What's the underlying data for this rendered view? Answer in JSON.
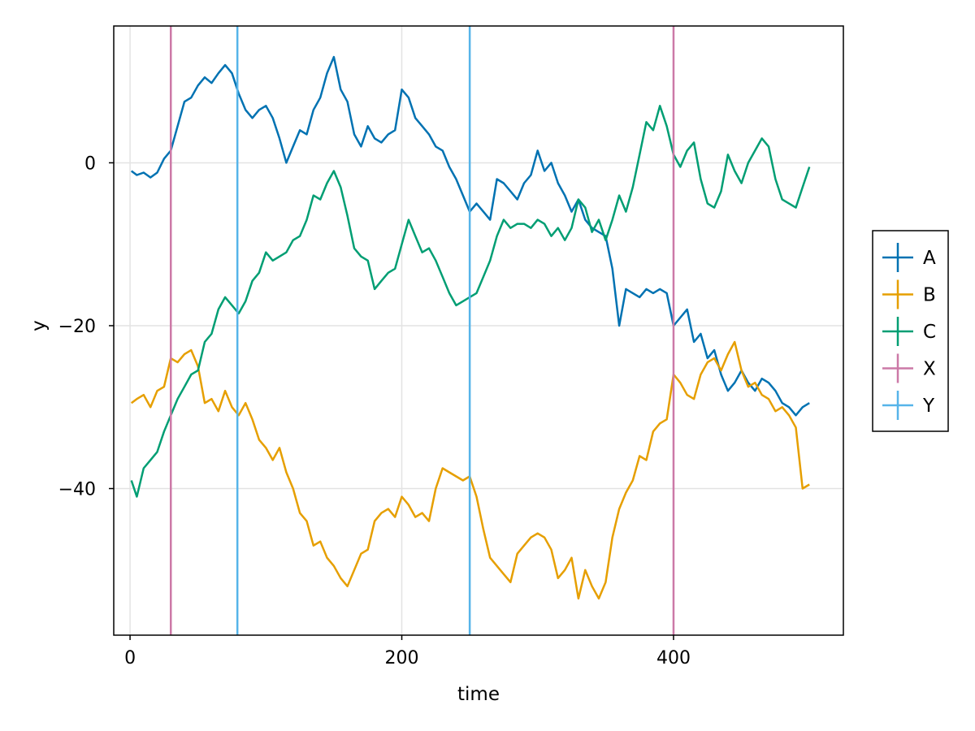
{
  "chart_data": {
    "type": "line",
    "title": "",
    "xlabel": "time",
    "ylabel": "y",
    "xlim": [
      -12,
      525
    ],
    "ylim": [
      -58,
      16.8
    ],
    "xticks": [
      0,
      200,
      400
    ],
    "xtick_labels": [
      "0",
      "200",
      "400"
    ],
    "yticks": [
      -40,
      -20,
      0
    ],
    "ytick_labels": [
      "−40",
      "−20",
      "0"
    ],
    "grid": true,
    "legend_position": "right",
    "series": [
      {
        "name": "A",
        "color": "#0072b2",
        "x": [
          1,
          5,
          10,
          15,
          20,
          25,
          30,
          35,
          40,
          45,
          50,
          55,
          60,
          65,
          70,
          75,
          80,
          85,
          90,
          95,
          100,
          105,
          110,
          115,
          120,
          125,
          130,
          135,
          140,
          145,
          150,
          155,
          160,
          165,
          170,
          175,
          180,
          185,
          190,
          195,
          200,
          205,
          210,
          215,
          220,
          225,
          230,
          235,
          240,
          245,
          250,
          255,
          260,
          265,
          270,
          275,
          280,
          285,
          290,
          295,
          300,
          305,
          310,
          315,
          320,
          325,
          330,
          335,
          340,
          345,
          350,
          355,
          360,
          365,
          370,
          375,
          380,
          385,
          390,
          395,
          400,
          405,
          410,
          415,
          420,
          425,
          430,
          435,
          440,
          445,
          450,
          455,
          460,
          465,
          470,
          475,
          480,
          485,
          490,
          495,
          500
        ],
        "y": [
          -1,
          -1.5,
          -1.2,
          -1.8,
          -1.2,
          0.5,
          1.5,
          4.5,
          7.5,
          8,
          9.5,
          10.5,
          9.8,
          11,
          12,
          11,
          8.5,
          6.5,
          5.5,
          6.5,
          7,
          5.5,
          3,
          0,
          2,
          4,
          3.5,
          6.5,
          8,
          11,
          13,
          9,
          7.5,
          3.5,
          2,
          4.5,
          3,
          2.5,
          3.5,
          4,
          9,
          8,
          5.5,
          4.5,
          3.5,
          2,
          1.5,
          -0.5,
          -2,
          -4,
          -6,
          -5,
          -6,
          -7,
          -2,
          -2.5,
          -3.5,
          -4.5,
          -2.5,
          -1.5,
          1.5,
          -1,
          0,
          -2.5,
          -4,
          -6,
          -4.5,
          -7,
          -8,
          -8.5,
          -9,
          -13,
          -20,
          -15.5,
          -16,
          -16.5,
          -15.5,
          -16,
          -15.5,
          -16,
          -20,
          -19,
          -18,
          -22,
          -21,
          -24,
          -23,
          -26,
          -28,
          -27,
          -25.5,
          -27,
          -28,
          -26.5,
          -27,
          -28,
          -29.5,
          -30,
          -31,
          -30,
          -29.5
        ]
      },
      {
        "name": "B",
        "color": "#e69f00",
        "x": [
          1,
          5,
          10,
          15,
          20,
          25,
          30,
          35,
          40,
          45,
          50,
          55,
          60,
          65,
          70,
          75,
          80,
          85,
          90,
          95,
          100,
          105,
          110,
          115,
          120,
          125,
          130,
          135,
          140,
          145,
          150,
          155,
          160,
          165,
          170,
          175,
          180,
          185,
          190,
          195,
          200,
          205,
          210,
          215,
          220,
          225,
          230,
          235,
          240,
          245,
          250,
          255,
          260,
          265,
          270,
          275,
          280,
          285,
          290,
          295,
          300,
          305,
          310,
          315,
          320,
          325,
          330,
          335,
          340,
          345,
          350,
          355,
          360,
          365,
          370,
          375,
          380,
          385,
          390,
          395,
          400,
          405,
          410,
          415,
          420,
          425,
          430,
          435,
          440,
          445,
          450,
          455,
          460,
          465,
          470,
          475,
          480,
          485,
          490,
          495,
          500
        ],
        "y": [
          -29.5,
          -29,
          -28.5,
          -30,
          -28,
          -27.5,
          -24,
          -24.5,
          -23.5,
          -23,
          -25,
          -29.5,
          -29,
          -30.5,
          -28,
          -30,
          -31,
          -29.5,
          -31.5,
          -34,
          -35,
          -36.5,
          -35,
          -38,
          -40,
          -43,
          -44,
          -47,
          -46.5,
          -48.5,
          -49.5,
          -51,
          -52,
          -50,
          -48,
          -47.5,
          -44,
          -43,
          -42.5,
          -43.5,
          -41,
          -42,
          -43.5,
          -43,
          -44,
          -40,
          -37.5,
          -38,
          -38.5,
          -39,
          -38.5,
          -41,
          -45,
          -48.5,
          -49.5,
          -50.5,
          -51.5,
          -48,
          -47,
          -46,
          -45.5,
          -46,
          -47.5,
          -51,
          -50,
          -48.5,
          -53.5,
          -50,
          -52,
          -53.5,
          -51.5,
          -46,
          -42.5,
          -40.5,
          -39,
          -36,
          -36.5,
          -33,
          -32,
          -31.5,
          -26,
          -27,
          -28.5,
          -29,
          -26,
          -24.5,
          -24,
          -25.5,
          -23.5,
          -22,
          -25.5,
          -27.5,
          -27,
          -28.5,
          -29,
          -30.5,
          -30,
          -31,
          -32.5,
          -40,
          -39.5
        ]
      },
      {
        "name": "C",
        "color": "#009e73",
        "x": [
          1,
          5,
          10,
          15,
          20,
          25,
          30,
          35,
          40,
          45,
          50,
          55,
          60,
          65,
          70,
          75,
          80,
          85,
          90,
          95,
          100,
          105,
          110,
          115,
          120,
          125,
          130,
          135,
          140,
          145,
          150,
          155,
          160,
          165,
          170,
          175,
          180,
          185,
          190,
          195,
          200,
          205,
          210,
          215,
          220,
          225,
          230,
          235,
          240,
          245,
          250,
          255,
          260,
          265,
          270,
          275,
          280,
          285,
          290,
          295,
          300,
          305,
          310,
          315,
          320,
          325,
          330,
          335,
          340,
          345,
          350,
          355,
          360,
          365,
          370,
          375,
          380,
          385,
          390,
          395,
          400,
          405,
          410,
          415,
          420,
          425,
          430,
          435,
          440,
          445,
          450,
          455,
          460,
          465,
          470,
          475,
          480,
          485,
          490,
          495,
          500
        ],
        "y": [
          -39,
          -41,
          -37.5,
          -36.5,
          -35.5,
          -33,
          -31,
          -29,
          -27.5,
          -26,
          -25.5,
          -22,
          -21,
          -18,
          -16.5,
          -17.5,
          -18.5,
          -17,
          -14.5,
          -13.5,
          -11,
          -12,
          -11.5,
          -11,
          -9.5,
          -9,
          -7,
          -4,
          -4.5,
          -2.5,
          -1,
          -3,
          -6.5,
          -10.5,
          -11.5,
          -12,
          -15.5,
          -14.5,
          -13.5,
          -13,
          -10,
          -7,
          -9,
          -11,
          -10.5,
          -12,
          -14,
          -16,
          -17.5,
          -17,
          -16.5,
          -16,
          -14,
          -12,
          -9,
          -7,
          -8,
          -7.5,
          -7.5,
          -8,
          -7,
          -7.5,
          -9,
          -8,
          -9.5,
          -8,
          -4.5,
          -5.5,
          -8.5,
          -7,
          -9.5,
          -7,
          -4,
          -6,
          -3,
          1,
          5,
          4,
          7,
          4.5,
          1,
          -0.5,
          1.5,
          2.5,
          -2,
          -5,
          -5.5,
          -3.5,
          1,
          -1,
          -2.5,
          0,
          1.5,
          3,
          2,
          -2,
          -4.5,
          -5,
          -5.5,
          -3,
          -0.5
        ]
      },
      {
        "name": "X",
        "color": "#cc79a7",
        "vlines": [
          30,
          400
        ]
      },
      {
        "name": "Y",
        "color": "#56b4e9",
        "vlines": [
          79,
          250
        ]
      }
    ]
  }
}
